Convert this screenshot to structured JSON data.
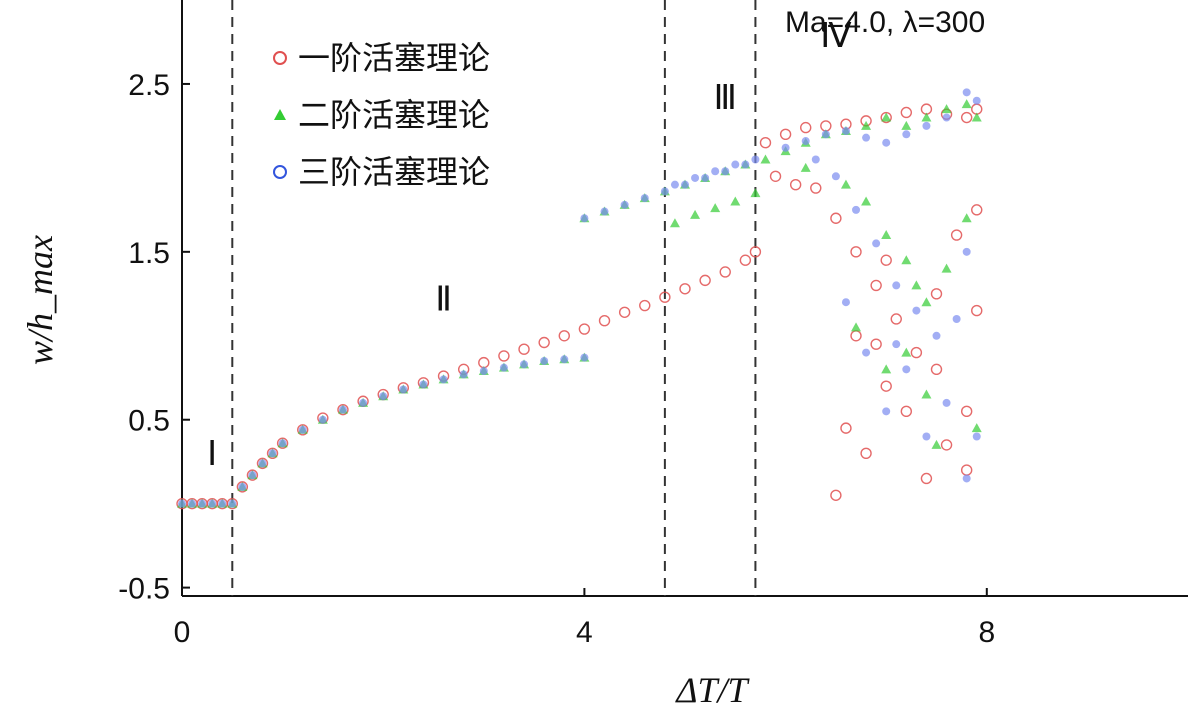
{
  "chart_data": {
    "type": "scatter",
    "title": "",
    "annotation": "Ma=4.0, λ=300",
    "xlabel": "ΔT/T",
    "ylabel": "w/h_max",
    "xlim": [
      0,
      10
    ],
    "ylim": [
      -0.55,
      3.0
    ],
    "xticks": [
      "0",
      "4",
      "8"
    ],
    "yticks": [
      "-0.5",
      "0.5",
      "1.5",
      "2.5"
    ],
    "grid": false,
    "legend_position": "top-left",
    "region_labels": [
      {
        "label": "Ⅰ",
        "x": 0.3,
        "y": 0.23
      },
      {
        "label": "Ⅱ",
        "x": 2.6,
        "y": 1.15
      },
      {
        "label": "Ⅲ",
        "x": 5.4,
        "y": 2.35
      },
      {
        "label": "Ⅳ",
        "x": 6.5,
        "y": 2.72
      }
    ],
    "boundaries": [
      0.5,
      4.8,
      5.7
    ],
    "series": [
      {
        "name": "一阶活塞理论",
        "marker": "circle-open",
        "color": "#e05050",
        "points": [
          [
            0.0,
            0.0
          ],
          [
            0.1,
            0.0
          ],
          [
            0.2,
            0.0
          ],
          [
            0.3,
            0.0
          ],
          [
            0.4,
            0.0
          ],
          [
            0.5,
            0.0
          ],
          [
            0.6,
            0.1
          ],
          [
            0.7,
            0.17
          ],
          [
            0.8,
            0.24
          ],
          [
            0.9,
            0.3
          ],
          [
            1.0,
            0.36
          ],
          [
            1.2,
            0.44
          ],
          [
            1.4,
            0.51
          ],
          [
            1.6,
            0.56
          ],
          [
            1.8,
            0.61
          ],
          [
            2.0,
            0.65
          ],
          [
            2.2,
            0.69
          ],
          [
            2.4,
            0.72
          ],
          [
            2.6,
            0.76
          ],
          [
            2.8,
            0.8
          ],
          [
            3.0,
            0.84
          ],
          [
            3.2,
            0.88
          ],
          [
            3.4,
            0.92
          ],
          [
            3.6,
            0.96
          ],
          [
            3.8,
            1.0
          ],
          [
            4.0,
            1.04
          ],
          [
            4.2,
            1.09
          ],
          [
            4.4,
            1.14
          ],
          [
            4.6,
            1.18
          ],
          [
            4.8,
            1.23
          ],
          [
            5.0,
            1.28
          ],
          [
            5.2,
            1.33
          ],
          [
            5.4,
            1.38
          ],
          [
            5.6,
            1.45
          ],
          [
            5.7,
            1.5
          ],
          [
            5.8,
            2.15
          ],
          [
            6.0,
            2.2
          ],
          [
            6.2,
            2.24
          ],
          [
            6.4,
            2.25
          ],
          [
            6.6,
            2.26
          ],
          [
            6.8,
            2.28
          ],
          [
            7.0,
            2.3
          ],
          [
            7.2,
            2.33
          ],
          [
            7.4,
            2.35
          ],
          [
            7.6,
            2.32
          ],
          [
            7.8,
            2.3
          ],
          [
            7.9,
            2.35
          ],
          [
            5.9,
            1.95
          ],
          [
            6.1,
            1.9
          ],
          [
            6.3,
            1.88
          ],
          [
            6.5,
            1.7
          ],
          [
            6.7,
            1.5
          ],
          [
            6.9,
            1.3
          ],
          [
            7.1,
            1.1
          ],
          [
            7.3,
            0.9
          ],
          [
            7.5,
            0.8
          ],
          [
            7.7,
            1.6
          ],
          [
            7.9,
            1.75
          ],
          [
            6.6,
            0.45
          ],
          [
            6.8,
            0.3
          ],
          [
            7.0,
            0.7
          ],
          [
            7.2,
            0.55
          ],
          [
            7.4,
            0.15
          ],
          [
            7.6,
            0.35
          ],
          [
            7.8,
            0.2
          ],
          [
            6.5,
            0.05
          ],
          [
            6.7,
            1.0
          ],
          [
            7.0,
            1.45
          ],
          [
            7.5,
            1.25
          ],
          [
            7.9,
            1.15
          ],
          [
            7.8,
            0.55
          ],
          [
            6.9,
            0.95
          ]
        ]
      },
      {
        "name": "二阶活塞理论",
        "marker": "triangle",
        "color": "#33cc33",
        "points": [
          [
            0.0,
            0.0
          ],
          [
            0.1,
            0.0
          ],
          [
            0.2,
            0.0
          ],
          [
            0.3,
            0.0
          ],
          [
            0.4,
            0.0
          ],
          [
            0.5,
            0.0
          ],
          [
            0.6,
            0.1
          ],
          [
            0.7,
            0.17
          ],
          [
            0.8,
            0.24
          ],
          [
            0.9,
            0.3
          ],
          [
            1.0,
            0.36
          ],
          [
            1.2,
            0.44
          ],
          [
            1.4,
            0.5
          ],
          [
            1.6,
            0.56
          ],
          [
            1.8,
            0.6
          ],
          [
            2.0,
            0.64
          ],
          [
            2.2,
            0.68
          ],
          [
            2.4,
            0.71
          ],
          [
            2.6,
            0.74
          ],
          [
            2.8,
            0.77
          ],
          [
            3.0,
            0.79
          ],
          [
            3.2,
            0.81
          ],
          [
            3.4,
            0.83
          ],
          [
            3.6,
            0.85
          ],
          [
            3.8,
            0.86
          ],
          [
            4.0,
            0.87
          ],
          [
            4.0,
            1.7
          ],
          [
            4.2,
            1.74
          ],
          [
            4.4,
            1.78
          ],
          [
            4.6,
            1.82
          ],
          [
            4.8,
            1.86
          ],
          [
            5.0,
            1.9
          ],
          [
            5.2,
            1.94
          ],
          [
            5.4,
            1.98
          ],
          [
            5.6,
            2.02
          ],
          [
            5.8,
            2.05
          ],
          [
            6.0,
            2.1
          ],
          [
            6.2,
            2.15
          ],
          [
            6.4,
            2.2
          ],
          [
            6.6,
            2.22
          ],
          [
            6.8,
            2.25
          ],
          [
            7.0,
            2.3
          ],
          [
            7.2,
            2.25
          ],
          [
            7.4,
            2.3
          ],
          [
            7.6,
            2.35
          ],
          [
            7.8,
            2.38
          ],
          [
            7.9,
            2.3
          ],
          [
            4.9,
            1.67
          ],
          [
            5.1,
            1.72
          ],
          [
            5.3,
            1.76
          ],
          [
            5.5,
            1.8
          ],
          [
            5.7,
            1.85
          ],
          [
            6.2,
            2.0
          ],
          [
            6.6,
            1.9
          ],
          [
            6.8,
            1.8
          ],
          [
            7.0,
            1.6
          ],
          [
            7.2,
            1.45
          ],
          [
            7.3,
            1.3
          ],
          [
            7.4,
            1.2
          ],
          [
            7.6,
            1.4
          ],
          [
            7.8,
            1.7
          ],
          [
            6.7,
            1.05
          ],
          [
            7.0,
            0.8
          ],
          [
            7.2,
            0.9
          ],
          [
            7.4,
            0.65
          ],
          [
            7.5,
            0.35
          ],
          [
            7.9,
            0.45
          ]
        ]
      },
      {
        "name": "三阶活塞理论",
        "marker": "circle-filled",
        "color": "#7a8cf0",
        "points": [
          [
            0.0,
            0.0
          ],
          [
            0.1,
            0.0
          ],
          [
            0.2,
            0.0
          ],
          [
            0.3,
            0.0
          ],
          [
            0.4,
            0.0
          ],
          [
            0.5,
            0.0
          ],
          [
            0.6,
            0.1
          ],
          [
            0.7,
            0.17
          ],
          [
            0.8,
            0.24
          ],
          [
            0.9,
            0.3
          ],
          [
            1.0,
            0.36
          ],
          [
            1.2,
            0.44
          ],
          [
            1.4,
            0.5
          ],
          [
            1.6,
            0.56
          ],
          [
            1.8,
            0.6
          ],
          [
            2.0,
            0.64
          ],
          [
            2.2,
            0.68
          ],
          [
            2.4,
            0.71
          ],
          [
            2.6,
            0.74
          ],
          [
            2.8,
            0.77
          ],
          [
            3.0,
            0.79
          ],
          [
            3.2,
            0.81
          ],
          [
            3.4,
            0.83
          ],
          [
            3.6,
            0.85
          ],
          [
            3.8,
            0.86
          ],
          [
            4.0,
            0.87
          ],
          [
            4.0,
            1.7
          ],
          [
            4.2,
            1.74
          ],
          [
            4.4,
            1.78
          ],
          [
            4.6,
            1.82
          ],
          [
            4.8,
            1.86
          ],
          [
            5.0,
            1.9
          ],
          [
            5.2,
            1.94
          ],
          [
            5.4,
            1.98
          ],
          [
            5.6,
            2.02
          ],
          [
            4.9,
            1.9
          ],
          [
            5.1,
            1.94
          ],
          [
            5.3,
            1.98
          ],
          [
            5.5,
            2.02
          ],
          [
            5.7,
            2.05
          ],
          [
            6.0,
            2.12
          ],
          [
            6.2,
            2.16
          ],
          [
            6.4,
            2.2
          ],
          [
            6.6,
            2.22
          ],
          [
            6.8,
            2.18
          ],
          [
            7.0,
            2.15
          ],
          [
            7.2,
            2.2
          ],
          [
            7.4,
            2.25
          ],
          [
            7.6,
            2.3
          ],
          [
            7.8,
            2.45
          ],
          [
            7.9,
            2.4
          ],
          [
            6.3,
            2.05
          ],
          [
            6.5,
            1.95
          ],
          [
            6.7,
            1.75
          ],
          [
            6.9,
            1.55
          ],
          [
            7.1,
            1.3
          ],
          [
            7.3,
            1.15
          ],
          [
            7.5,
            1.0
          ],
          [
            7.7,
            1.1
          ],
          [
            7.8,
            1.5
          ],
          [
            6.8,
            0.9
          ],
          [
            7.0,
            0.55
          ],
          [
            7.2,
            0.8
          ],
          [
            7.4,
            0.4
          ],
          [
            7.6,
            0.6
          ],
          [
            7.8,
            0.15
          ],
          [
            7.9,
            0.4
          ],
          [
            6.6,
            1.2
          ],
          [
            7.1,
            0.95
          ]
        ]
      }
    ]
  }
}
